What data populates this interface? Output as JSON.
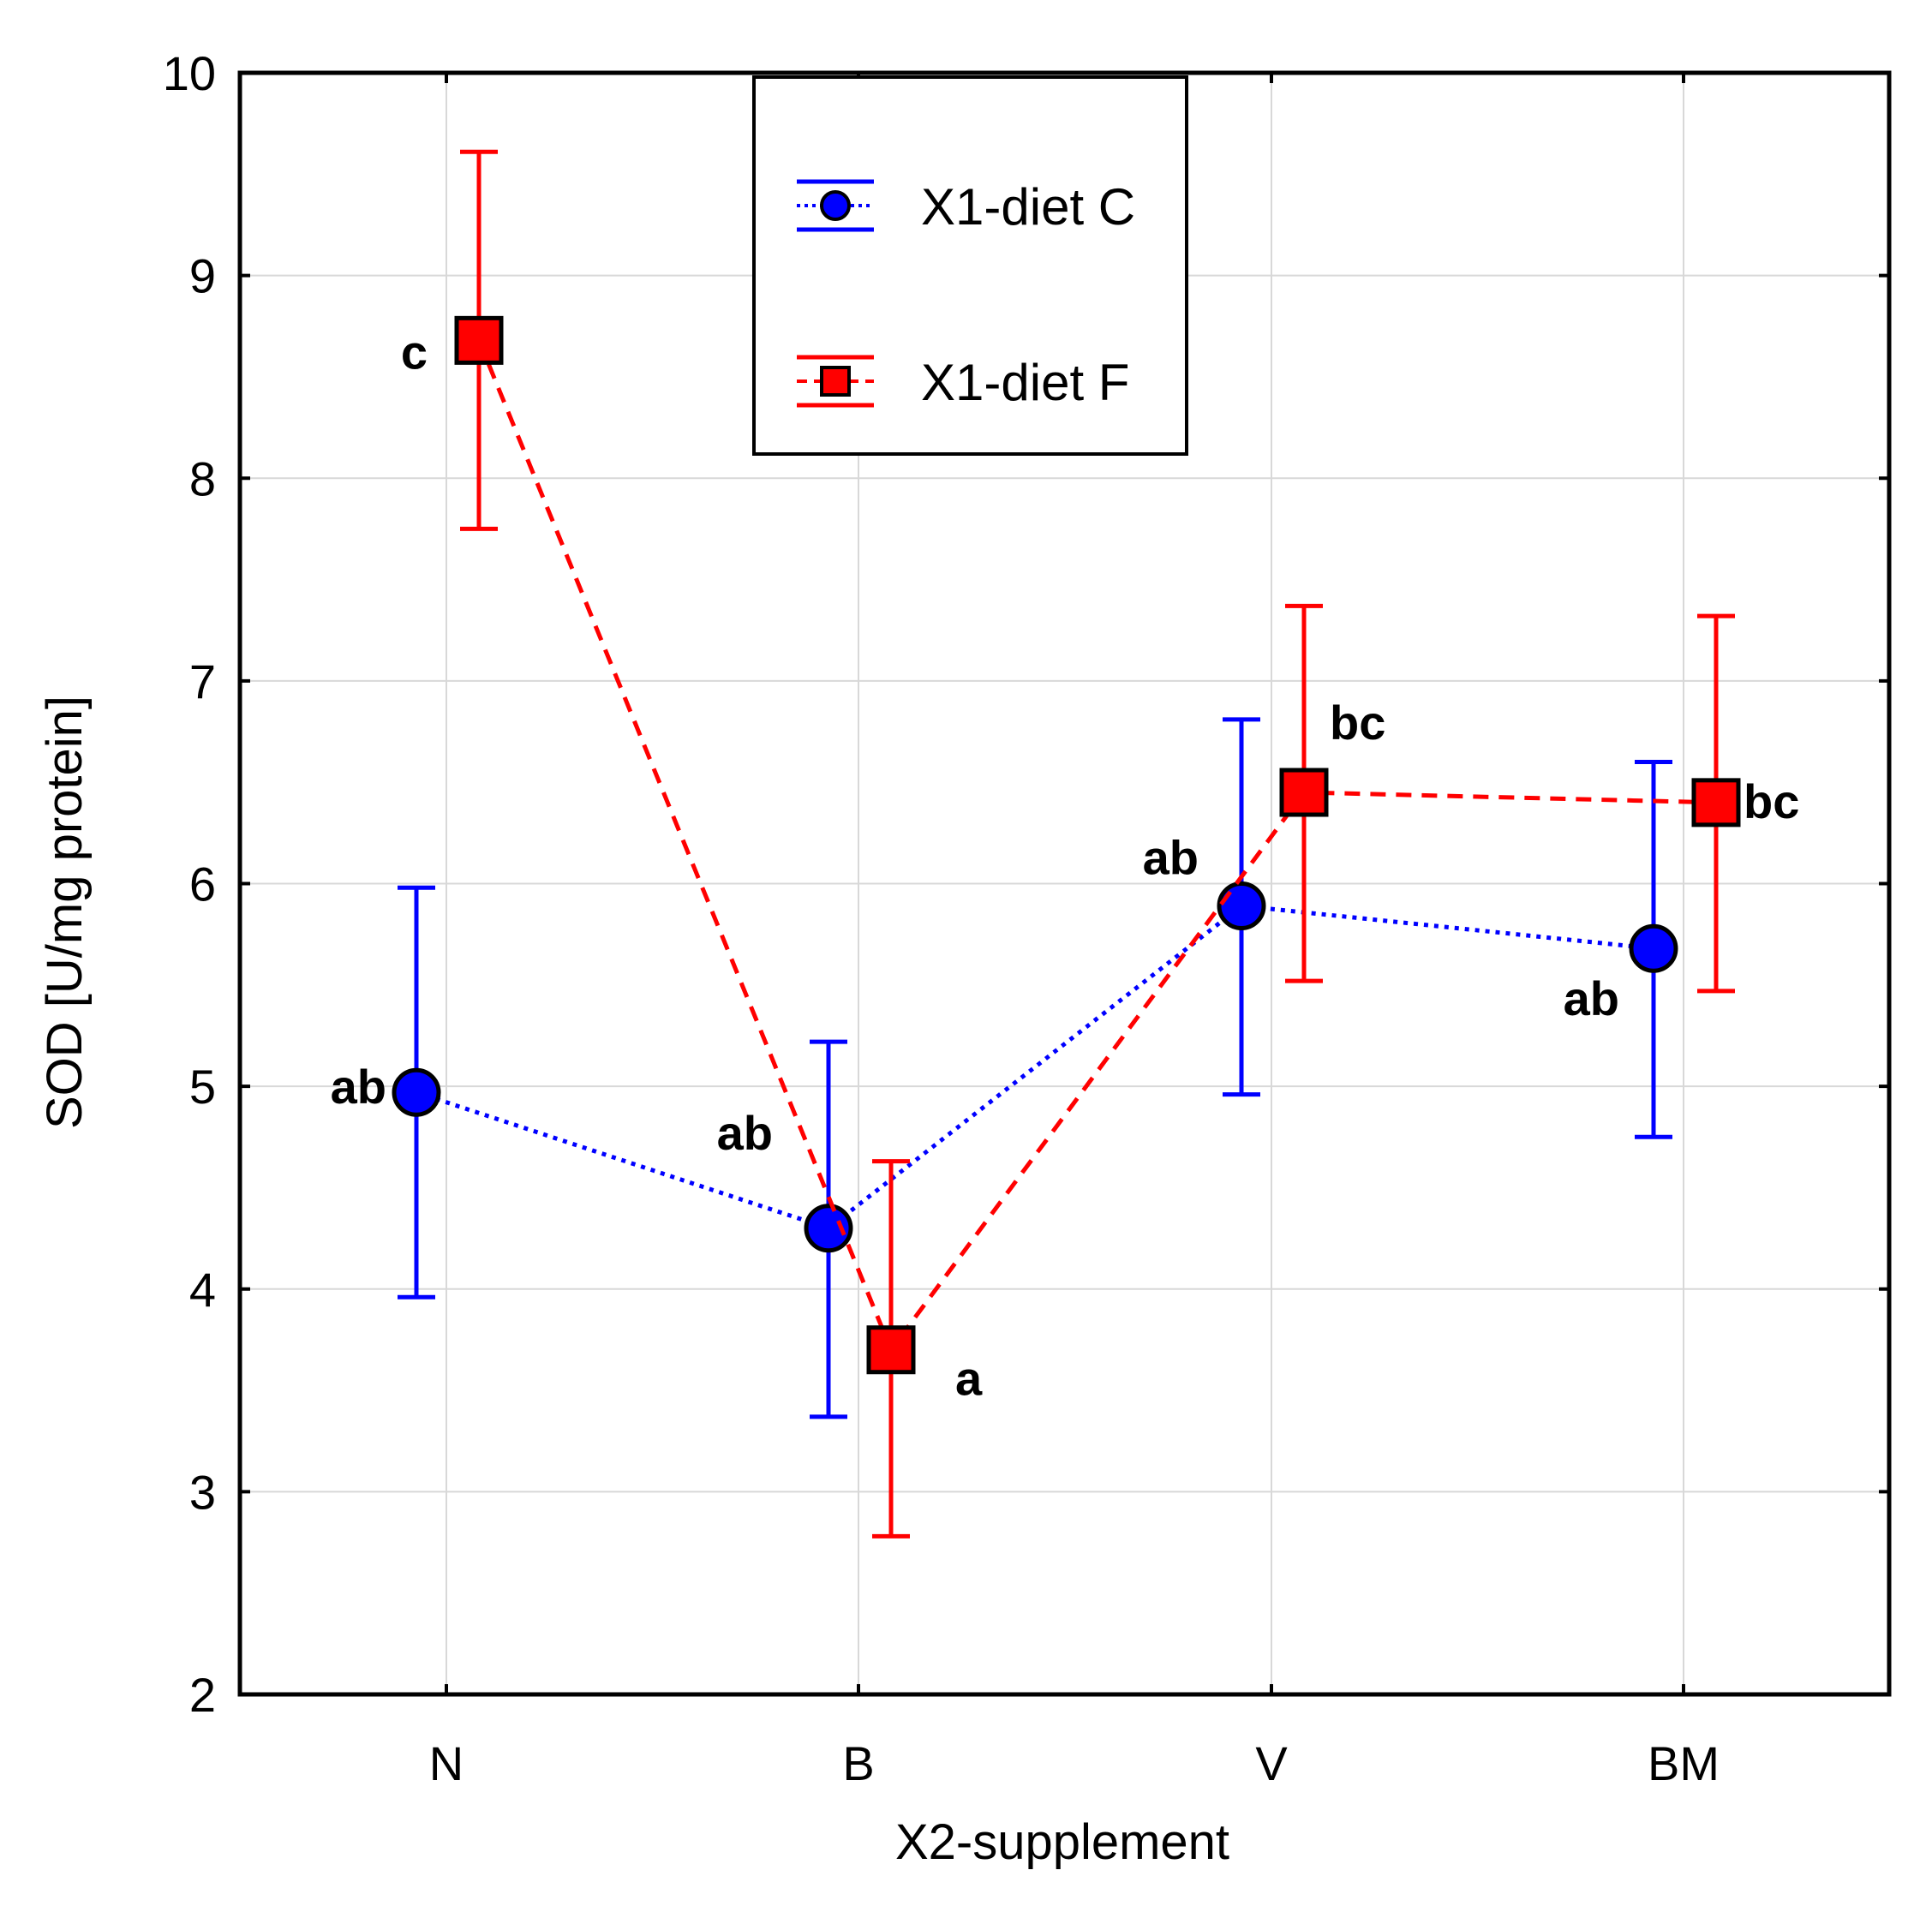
{
  "chart_data": {
    "type": "line",
    "title": "",
    "xlabel": "X2-supplement",
    "ylabel": "SOD [U/mg protein]",
    "categories": [
      "N",
      "B",
      "V",
      "BM"
    ],
    "ylim": [
      2,
      10
    ],
    "yticks": [
      "2",
      "3",
      "4",
      "5",
      "6",
      "7",
      "8",
      "9",
      "10"
    ],
    "grid": true,
    "legend_position": "top-center",
    "series": [
      {
        "name": "X1-diet  C",
        "color": "#0000ff",
        "marker": "circle",
        "line_style": "dotted",
        "values": [
          4.97,
          4.3,
          5.89,
          5.68
        ],
        "error_low": [
          3.96,
          3.37,
          4.96,
          4.75
        ],
        "error_high": [
          5.98,
          5.22,
          6.81,
          6.6
        ],
        "labels": [
          "ab",
          "ab",
          "ab",
          "ab"
        ]
      },
      {
        "name": "X1-diet  F",
        "color": "#ff0000",
        "marker": "square",
        "line_style": "dashed",
        "values": [
          8.68,
          3.7,
          6.45,
          6.4
        ],
        "error_low": [
          7.75,
          2.78,
          5.52,
          5.47
        ],
        "error_high": [
          9.61,
          4.63,
          7.37,
          7.32
        ],
        "labels": [
          "c",
          "a",
          "bc",
          "bc"
        ]
      }
    ]
  }
}
